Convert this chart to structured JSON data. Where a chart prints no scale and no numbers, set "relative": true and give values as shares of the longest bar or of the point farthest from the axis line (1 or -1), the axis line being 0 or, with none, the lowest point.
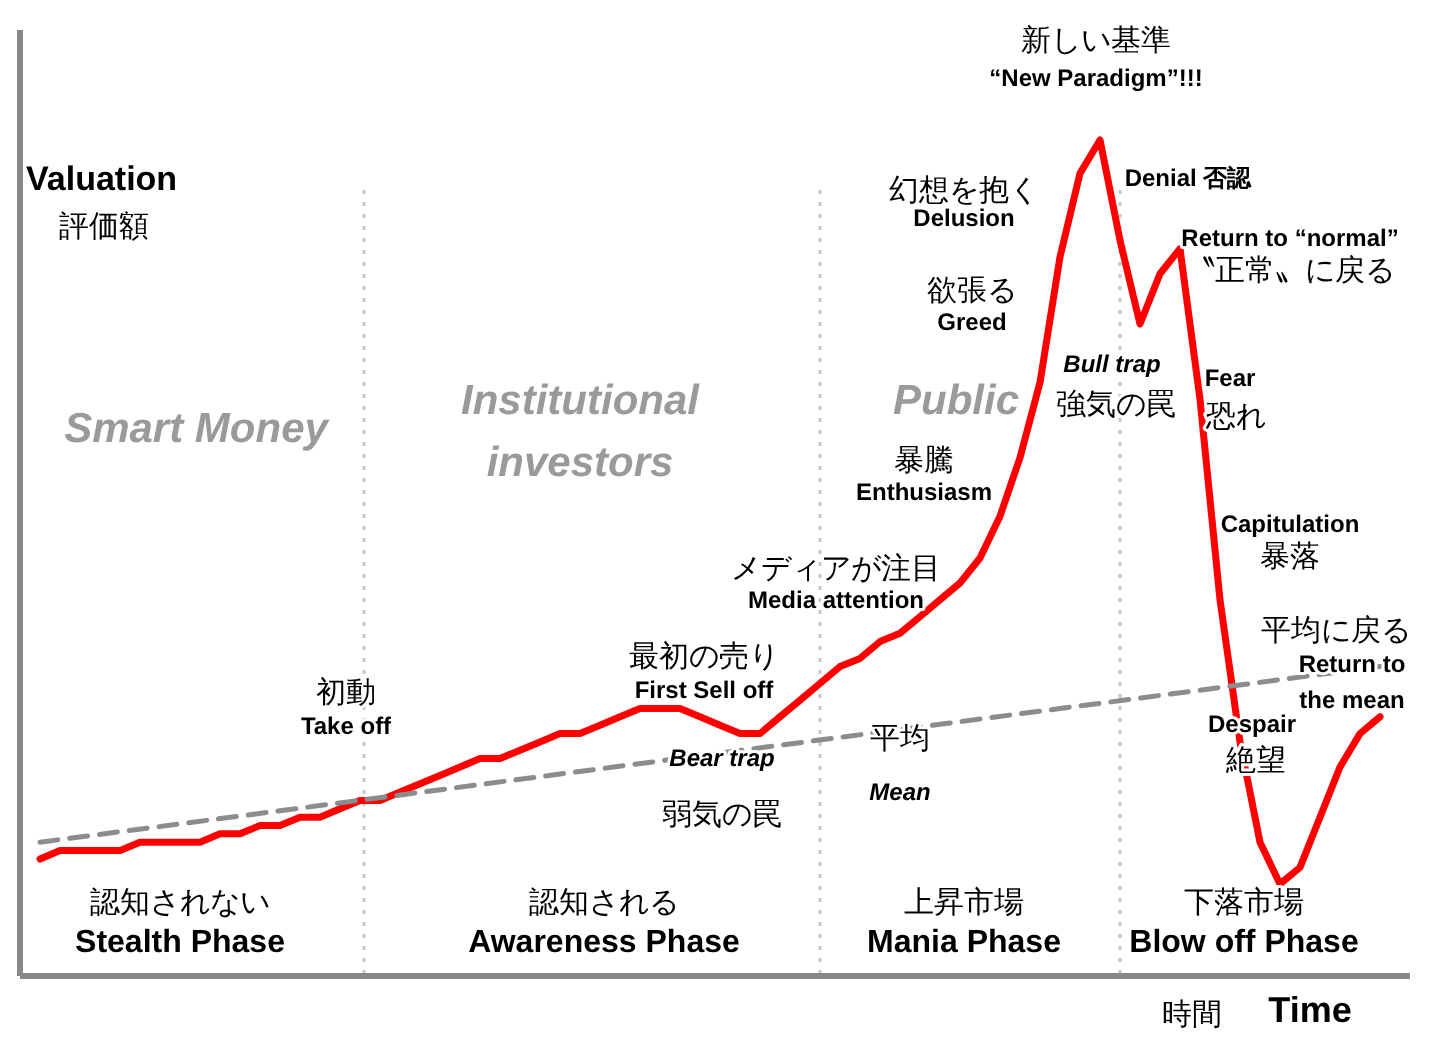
{
  "chart_data": {
    "type": "line",
    "relative": true,
    "grid": "x",
    "xlabel": "Time",
    "ylabel": "Valuation",
    "categories": [
      null,
      null,
      null,
      null,
      null,
      null,
      null,
      null,
      null,
      null,
      null,
      null,
      null,
      null,
      null,
      null,
      null,
      null,
      null,
      null,
      null,
      null,
      null,
      null,
      null,
      null,
      null,
      null,
      null,
      null,
      null,
      null,
      null,
      null,
      null,
      null,
      null,
      null,
      null,
      null,
      null,
      null,
      null,
      null,
      null,
      null,
      null,
      null,
      null,
      null,
      null,
      null,
      null,
      null,
      null,
      null,
      null,
      null,
      null,
      null,
      null,
      null,
      null,
      null,
      null,
      null,
      null,
      null
    ],
    "series": [
      {
        "color": "#ff0000",
        "line_style": "solid",
        "values": [
          0.14,
          0.15,
          0.15,
          0.15,
          0.15,
          0.16,
          0.16,
          0.16,
          0.16,
          0.17,
          0.17,
          0.18,
          0.18,
          0.19,
          0.19,
          0.2,
          0.21,
          0.21,
          0.22,
          0.23,
          0.24,
          0.25,
          0.26,
          0.26,
          0.27,
          0.28,
          0.29,
          0.29,
          0.3,
          0.31,
          0.32,
          0.32,
          0.32,
          0.31,
          0.3,
          0.29,
          0.29,
          0.31,
          0.33,
          0.35,
          0.37,
          0.38,
          0.4,
          0.41,
          0.43,
          0.45,
          0.47,
          0.5,
          0.55,
          0.62,
          0.71,
          0.86,
          0.96,
          1.0,
          0.88,
          0.78,
          0.84,
          0.87,
          0.69,
          0.45,
          0.28,
          0.16,
          0.11,
          0.13,
          0.19,
          0.25,
          0.29,
          0.31
        ]
      },
      {
        "color": "#8c8c8c",
        "line_style": "dashed",
        "values": [
          0.16,
          null,
          null,
          null,
          null,
          null,
          null,
          null,
          null,
          null,
          null,
          null,
          null,
          null,
          null,
          null,
          null,
          null,
          null,
          null,
          null,
          null,
          null,
          null,
          null,
          null,
          null,
          null,
          null,
          null,
          null,
          null,
          null,
          null,
          null,
          null,
          null,
          null,
          null,
          null,
          null,
          null,
          null,
          null,
          null,
          null,
          null,
          null,
          null,
          null,
          null,
          null,
          null,
          null,
          null,
          null,
          null,
          null,
          null,
          null,
          null,
          null,
          null,
          null,
          null,
          null,
          null,
          0.37
        ]
      }
    ],
    "annotations": [
      "評価額",
      "Smart Money",
      "Institutional investors",
      "Public",
      "初動",
      "Take off",
      "最初の売り",
      "First Sell off",
      "Bear trap",
      "弱気の罠",
      "平均",
      "Mean",
      "メディアが注目",
      "Media attention",
      "暴騰",
      "Enthusiasm",
      "欲張る",
      "Greed",
      "幻想を抱く",
      "Delusion",
      "新しい基準",
      "“New Paradigm”!!!",
      "Denial 否認",
      "Return to “normal”",
      "〝正常〟に戻る",
      "Bull trap",
      "強気の罠",
      "Fear",
      "恐れ",
      "Capitulation",
      "暴落",
      "平均に戻る",
      "Return to the mean",
      "Despair",
      "絶望",
      "認知されない",
      "Stealth Phase",
      "認知される",
      "Awareness Phase",
      "上昇市場",
      "Mania Phase",
      "下落市場",
      "Blow off Phase",
      "時間"
    ]
  }
}
